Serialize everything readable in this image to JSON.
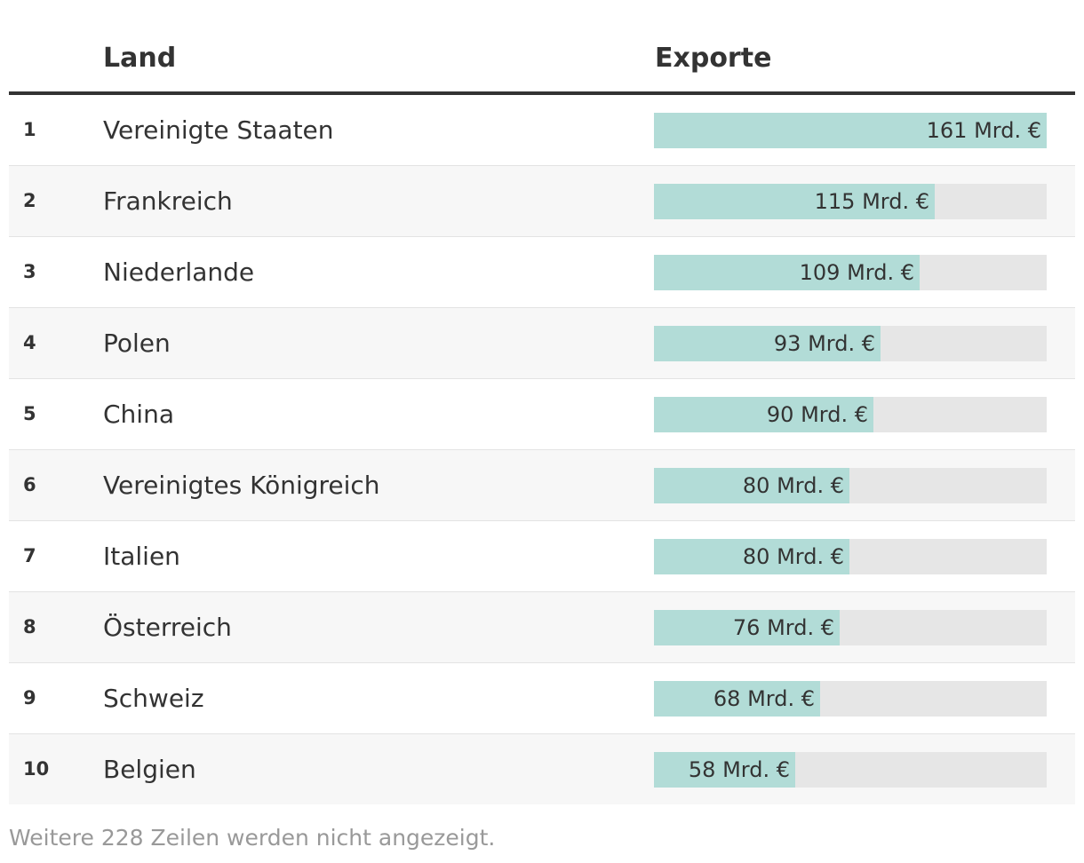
{
  "colors": {
    "bar_fill": "#b2dcd7",
    "bar_track": "#e6e6e6",
    "header_rule": "#333333",
    "footer_text": "#999999"
  },
  "chart_data": {
    "type": "table",
    "columns": [
      "Land",
      "Exporte"
    ],
    "value_max": 161,
    "unit_suffix": " Mrd. €",
    "rows": [
      {
        "rank": "1",
        "country": "Vereinigte Staaten",
        "value": 161,
        "label": "161 Mrd. €"
      },
      {
        "rank": "2",
        "country": "Frankreich",
        "value": 115,
        "label": "115 Mrd. €"
      },
      {
        "rank": "3",
        "country": "Niederlande",
        "value": 109,
        "label": "109 Mrd. €"
      },
      {
        "rank": "4",
        "country": "Polen",
        "value": 93,
        "label": "93 Mrd. €"
      },
      {
        "rank": "5",
        "country": "China",
        "value": 90,
        "label": "90 Mrd. €"
      },
      {
        "rank": "6",
        "country": "Vereinigtes Königreich",
        "value": 80,
        "label": "80 Mrd. €"
      },
      {
        "rank": "7",
        "country": "Italien",
        "value": 80,
        "label": "80 Mrd. €"
      },
      {
        "rank": "8",
        "country": "Österreich",
        "value": 76,
        "label": "76 Mrd. €"
      },
      {
        "rank": "9",
        "country": "Schweiz",
        "value": 68,
        "label": "68 Mrd. €"
      },
      {
        "rank": "10",
        "country": "Belgien",
        "value": 58,
        "label": "58 Mrd. €"
      }
    ],
    "footer": "Weitere 228 Zeilen werden nicht angezeigt."
  }
}
